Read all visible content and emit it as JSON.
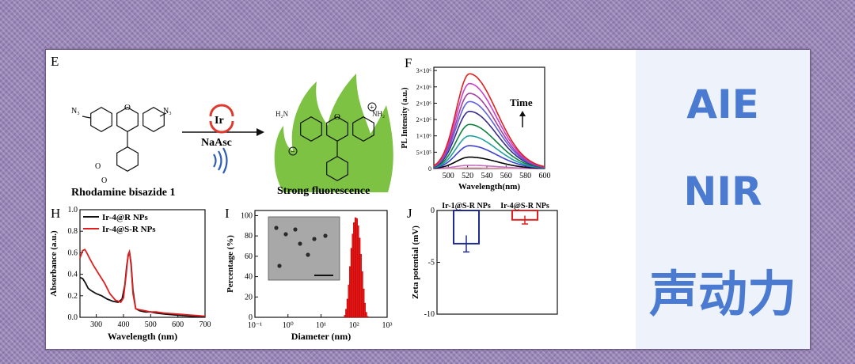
{
  "panel_e": {
    "label": "E",
    "reactant_name": "Rhodamine bisazide 1",
    "catalyst": "Ir",
    "reagent": "NaAsc",
    "product_caption": "Strong fluorescence",
    "reactant_n3_left": "N₃",
    "reactant_n3_right": "N₃",
    "product_nh2_left": "H₂N",
    "product_nh2_right": "NH₂",
    "product_charge_plus": "+",
    "product_charge_minus": "−",
    "oxygen": "O",
    "colors": {
      "flame": "#7dc242",
      "catalyst_arrow": "#e03a2f",
      "sound_waves": "#2d5db8"
    }
  },
  "keywords": {
    "line1": "AIE",
    "line2": "NIR",
    "line3": "声动力"
  },
  "chart_data": [
    {
      "panel": "F",
      "type": "line",
      "xlabel": "Wavelength(nm)",
      "ylabel": "PL Intensity (a.u.)",
      "xlim": [
        485,
        600
      ],
      "ylim": [
        0,
        3100000.0
      ],
      "xticks": [
        500,
        520,
        540,
        560,
        580,
        600
      ],
      "yticks": [
        0,
        500000,
        1000000,
        1500000,
        2000000,
        2500000,
        3000000
      ],
      "ytick_labels": [
        "0",
        "5×10⁵",
        "1×10⁶",
        "2×10⁶",
        "2×10⁶",
        "2×10⁶",
        "3×10⁶"
      ],
      "annotation": "Time",
      "peak_wavelength": 522,
      "series_peaks": [
        20000,
        100000,
        350000,
        700000,
        1000000,
        1350000,
        1750000,
        2050000,
        2300000,
        2600000,
        2900000
      ],
      "series_colors": [
        "#e8a0b0",
        "#c070c0",
        "#000000",
        "#4040d0",
        "#20a0a0",
        "#108040",
        "#3a2a8a",
        "#6060e0",
        "#a040a0",
        "#cc40cc",
        "#e02020"
      ]
    },
    {
      "panel": "H",
      "type": "line",
      "xlabel": "Wavelength (nm)",
      "ylabel": "Absorbance (a.u.)",
      "xlim": [
        240,
        700
      ],
      "ylim": [
        0,
        1.0
      ],
      "xticks": [
        300,
        400,
        500,
        600,
        700
      ],
      "yticks": [
        0.0,
        0.2,
        0.4,
        0.6,
        0.8,
        1.0
      ],
      "ytick_labels": [
        "0.0",
        "0.2",
        "0.4",
        "0.6",
        "0.8",
        "1.0"
      ],
      "legend_position": "top-left",
      "series": [
        {
          "name": "Ir-4@R NPs",
          "color": "#111111",
          "x": [
            240,
            250,
            260,
            270,
            280,
            300,
            320,
            340,
            360,
            380,
            395,
            405,
            412,
            418,
            422,
            428,
            435,
            445,
            460,
            480,
            500,
            520,
            550,
            600,
            650,
            700
          ],
          "y": [
            0.37,
            0.36,
            0.32,
            0.27,
            0.25,
            0.22,
            0.2,
            0.17,
            0.15,
            0.14,
            0.17,
            0.3,
            0.48,
            0.58,
            0.61,
            0.5,
            0.25,
            0.08,
            0.06,
            0.05,
            0.05,
            0.04,
            0.03,
            0.02,
            0.01,
            0.01
          ]
        },
        {
          "name": "Ir-4@S-R NPs",
          "color": "#e02020",
          "x": [
            240,
            250,
            258,
            265,
            275,
            290,
            310,
            330,
            350,
            370,
            390,
            400,
            410,
            417,
            422,
            428,
            435,
            445,
            460,
            480,
            500,
            520,
            550,
            600,
            650,
            700
          ],
          "y": [
            0.55,
            0.62,
            0.63,
            0.6,
            0.55,
            0.48,
            0.4,
            0.32,
            0.22,
            0.16,
            0.14,
            0.18,
            0.4,
            0.58,
            0.61,
            0.48,
            0.22,
            0.08,
            0.07,
            0.06,
            0.05,
            0.05,
            0.04,
            0.03,
            0.02,
            0.01
          ]
        }
      ]
    },
    {
      "panel": "I",
      "type": "bar",
      "xlabel": "Diameter (nm)",
      "ylabel": "Percentage (%)",
      "xscale": "log",
      "xlim": [
        0.1,
        1000
      ],
      "ylim": [
        0,
        105
      ],
      "xtick_labels": [
        "10⁻¹",
        "10⁰",
        "10¹",
        "10²",
        "10³"
      ],
      "yticks": [
        0,
        20,
        40,
        60,
        80,
        100
      ],
      "peak_diameter": 110,
      "peak_percentage": 98,
      "inset": "TEM micrograph",
      "bars_x": [
        50,
        55,
        60,
        66,
        72,
        79,
        87,
        95,
        105,
        115,
        126,
        138,
        152,
        167,
        183,
        200,
        220,
        240
      ],
      "bars_y": [
        2,
        8,
        18,
        32,
        50,
        68,
        82,
        93,
        98,
        97,
        90,
        78,
        62,
        45,
        28,
        14,
        5,
        1
      ]
    },
    {
      "panel": "J",
      "type": "bar",
      "ylabel": "Zeta potential (mV)",
      "ylim": [
        -10,
        0
      ],
      "yticks": [
        0,
        -5,
        -10
      ],
      "categories": [
        "Ir-1@S-R NPs",
        "Ir-4@S-R NPs"
      ],
      "values": [
        -3.2,
        -0.9
      ],
      "errors": [
        0.8,
        0.4
      ],
      "colors": [
        "#1f2b8f",
        "#e02020"
      ]
    }
  ]
}
